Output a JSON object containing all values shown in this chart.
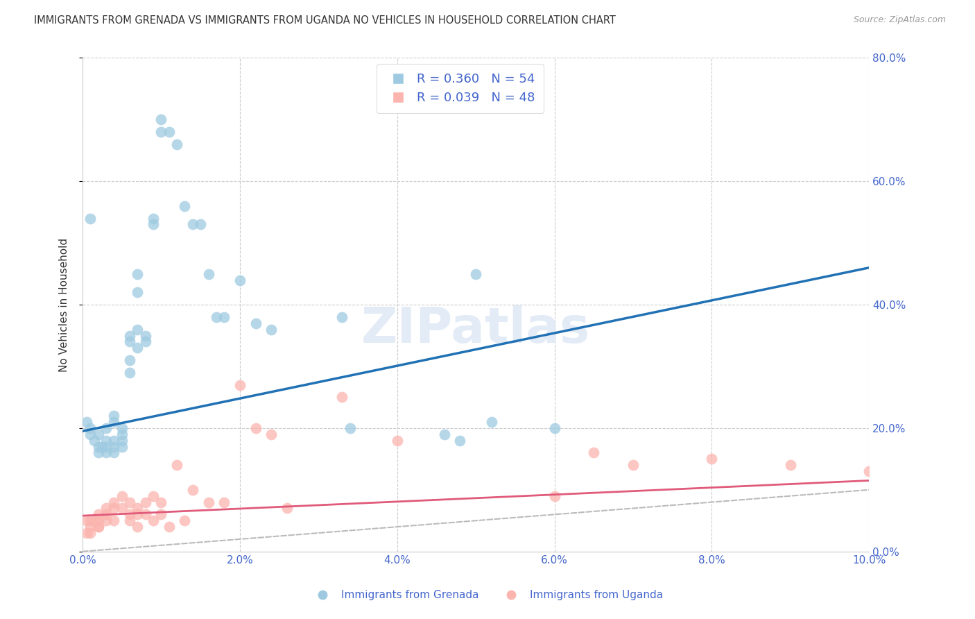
{
  "title": "IMMIGRANTS FROM GRENADA VS IMMIGRANTS FROM UGANDA NO VEHICLES IN HOUSEHOLD CORRELATION CHART",
  "source": "Source: ZipAtlas.com",
  "ylabel": "No Vehicles in Household",
  "xlabel": "",
  "xlim": [
    0.0,
    0.1
  ],
  "ylim": [
    0.0,
    0.8
  ],
  "xticks": [
    0.0,
    0.02,
    0.04,
    0.06,
    0.08,
    0.1
  ],
  "yticks": [
    0.0,
    0.2,
    0.4,
    0.6,
    0.8
  ],
  "series1_label": "Immigrants from Grenada",
  "series1_R": "R = 0.360",
  "series1_N": "N = 54",
  "series1_color": "#9ecae1",
  "series1_trend_color": "#2171b5",
  "series2_label": "Immigrants from Uganda",
  "series2_R": "R = 0.039",
  "series2_N": "N = 48",
  "series2_color": "#fbb4ae",
  "series2_trend_color": "#e05a7a",
  "ref_line_color": "#bbbbbb",
  "grid_color": "#cccccc",
  "axis_label_color": "#4466cc",
  "title_color": "#333333",
  "background": "#ffffff",
  "series1_x": [
    0.0005,
    0.001,
    0.001,
    0.0015,
    0.002,
    0.002,
    0.002,
    0.0025,
    0.003,
    0.003,
    0.003,
    0.003,
    0.004,
    0.004,
    0.004,
    0.004,
    0.004,
    0.005,
    0.005,
    0.005,
    0.005,
    0.006,
    0.006,
    0.006,
    0.006,
    0.007,
    0.007,
    0.007,
    0.007,
    0.008,
    0.008,
    0.009,
    0.009,
    0.01,
    0.01,
    0.011,
    0.012,
    0.013,
    0.014,
    0.015,
    0.016,
    0.017,
    0.018,
    0.02,
    0.022,
    0.024,
    0.033,
    0.034,
    0.046,
    0.048,
    0.05,
    0.052,
    0.06,
    0.001
  ],
  "series1_y": [
    0.21,
    0.2,
    0.19,
    0.18,
    0.19,
    0.17,
    0.16,
    0.17,
    0.2,
    0.18,
    0.17,
    0.16,
    0.22,
    0.21,
    0.18,
    0.17,
    0.16,
    0.2,
    0.19,
    0.18,
    0.17,
    0.35,
    0.34,
    0.31,
    0.29,
    0.45,
    0.42,
    0.36,
    0.33,
    0.34,
    0.35,
    0.54,
    0.53,
    0.68,
    0.7,
    0.68,
    0.66,
    0.56,
    0.53,
    0.53,
    0.45,
    0.38,
    0.38,
    0.44,
    0.37,
    0.36,
    0.38,
    0.2,
    0.19,
    0.18,
    0.45,
    0.21,
    0.2,
    0.54
  ],
  "series2_x": [
    0.0005,
    0.001,
    0.001,
    0.0015,
    0.002,
    0.002,
    0.002,
    0.003,
    0.003,
    0.003,
    0.004,
    0.004,
    0.004,
    0.005,
    0.005,
    0.006,
    0.006,
    0.006,
    0.007,
    0.007,
    0.007,
    0.008,
    0.008,
    0.009,
    0.009,
    0.01,
    0.01,
    0.011,
    0.012,
    0.013,
    0.014,
    0.016,
    0.018,
    0.02,
    0.022,
    0.024,
    0.026,
    0.033,
    0.04,
    0.06,
    0.065,
    0.07,
    0.08,
    0.09,
    0.1,
    0.0005,
    0.001,
    0.002
  ],
  "series2_y": [
    0.05,
    0.05,
    0.04,
    0.05,
    0.06,
    0.05,
    0.04,
    0.07,
    0.06,
    0.05,
    0.08,
    0.07,
    0.05,
    0.09,
    0.07,
    0.08,
    0.06,
    0.05,
    0.07,
    0.06,
    0.04,
    0.08,
    0.06,
    0.09,
    0.05,
    0.08,
    0.06,
    0.04,
    0.14,
    0.05,
    0.1,
    0.08,
    0.08,
    0.27,
    0.2,
    0.19,
    0.07,
    0.25,
    0.18,
    0.09,
    0.16,
    0.14,
    0.15,
    0.14,
    0.13,
    0.03,
    0.03,
    0.04
  ],
  "trend1_x0": 0.0,
  "trend1_x1": 0.1,
  "trend1_y0": 0.195,
  "trend1_y1": 0.46,
  "trend2_x0": 0.0,
  "trend2_x1": 0.1,
  "trend2_y0": 0.058,
  "trend2_y1": 0.115
}
